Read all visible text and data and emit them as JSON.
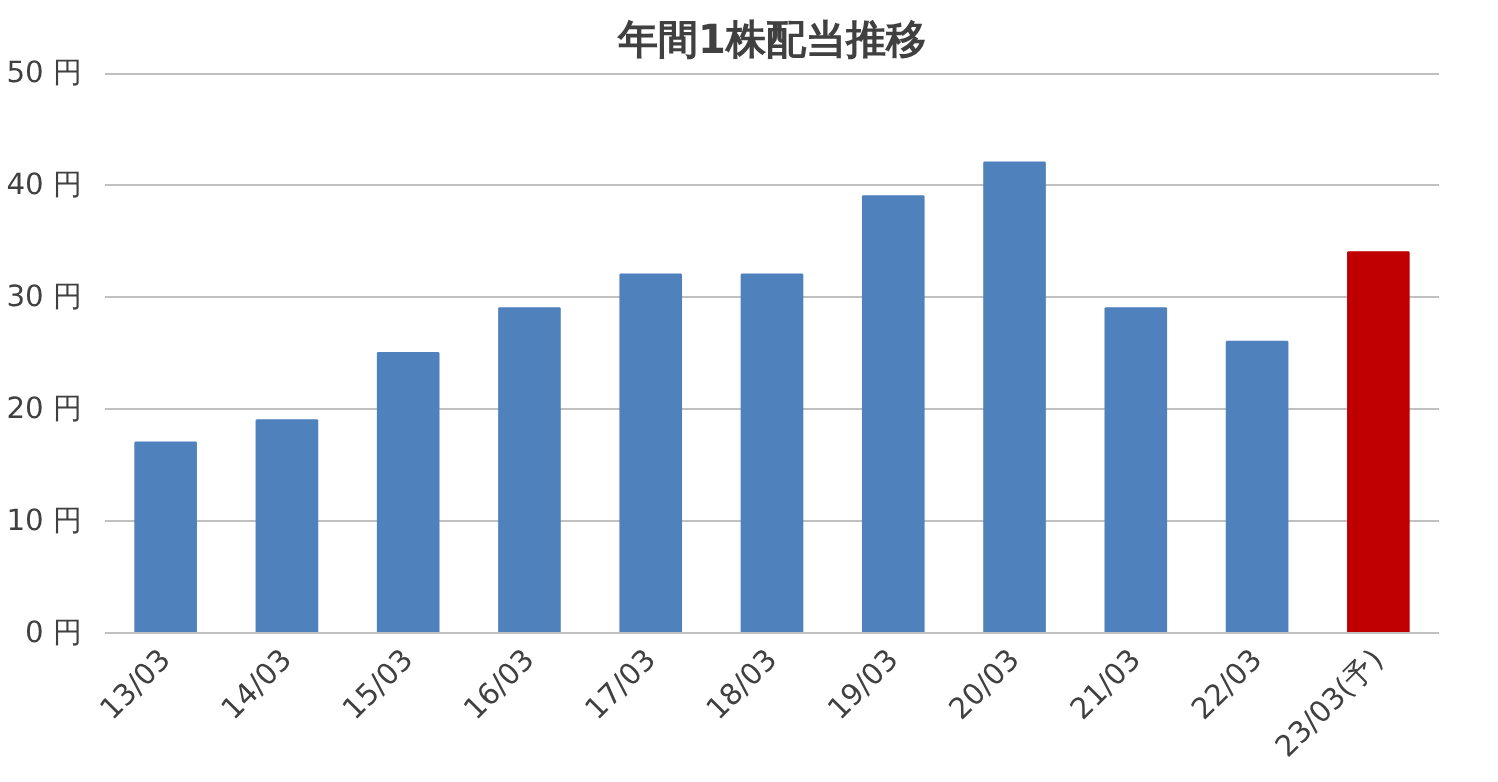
{
  "chart_data": {
    "type": "bar",
    "title": "年間1株配当推移",
    "categories": [
      "13/03",
      "14/03",
      "15/03",
      "16/03",
      "17/03",
      "18/03",
      "19/03",
      "20/03",
      "21/03",
      "22/03",
      "23/03(予)"
    ],
    "values": [
      17,
      19,
      25,
      29,
      32,
      32,
      39,
      42,
      29,
      26,
      34
    ],
    "colors": [
      "#4f81bd",
      "#4f81bd",
      "#4f81bd",
      "#4f81bd",
      "#4f81bd",
      "#4f81bd",
      "#4f81bd",
      "#4f81bd",
      "#4f81bd",
      "#4f81bd",
      "#c00000"
    ],
    "ylim": [
      0,
      50
    ],
    "yticks": [
      {
        "value": 0,
        "label": "0 円"
      },
      {
        "value": 10,
        "label": "10 円"
      },
      {
        "value": 20,
        "label": "20 円"
      },
      {
        "value": 30,
        "label": "30 円"
      },
      {
        "value": 40,
        "label": "40 円"
      },
      {
        "value": 50,
        "label": "50 円"
      }
    ],
    "grid": "y"
  }
}
